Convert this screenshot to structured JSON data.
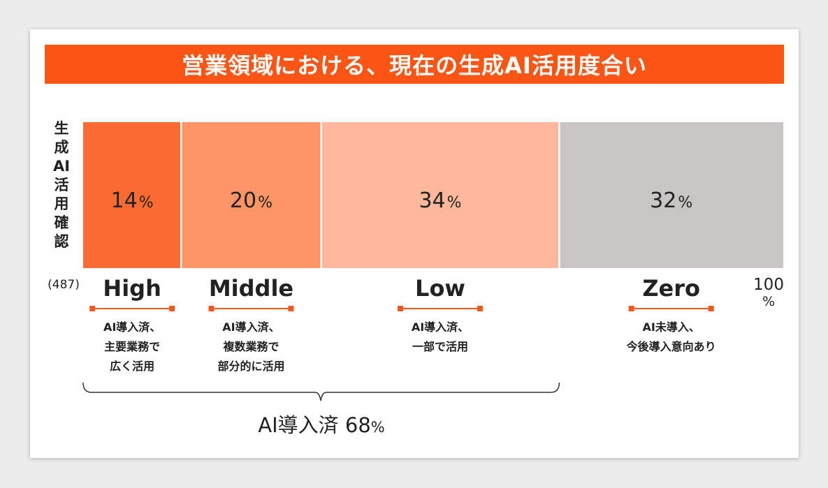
{
  "title": "営業領域における、現在の生成AI活用度合い",
  "y_axis_label": "生成AI活用確認",
  "sample_size": "(487)",
  "axis_end": {
    "value": "100",
    "unit": "%"
  },
  "colors": {
    "title_bar": "#fb5515",
    "accent_line": "#f05a1e"
  },
  "chart_data": {
    "type": "bar",
    "orientation": "horizontal-stacked",
    "title": "営業領域における、現在の生成AI活用度合い",
    "ylabel": "生成AI活用確認",
    "n": 487,
    "xlim": [
      0,
      100
    ],
    "unit": "%",
    "categories": [
      "High",
      "Middle",
      "Low",
      "Zero"
    ],
    "values": [
      14,
      20,
      34,
      32
    ],
    "value_labels": [
      "14",
      "20",
      "34",
      "32"
    ],
    "colors": [
      "#fa6b32",
      "#fd9466",
      "#fdb89c",
      "#c8c5c4"
    ],
    "descriptions": [
      "AI導入済、\n主要業務で\n広く活用",
      "AI導入済、\n複数業務で\n部分的に活用",
      "AI導入済、\n一部で活用",
      "AI未導入、\n今後導入意向あり"
    ],
    "annotation": {
      "label": "AI導入済",
      "value": "68",
      "unit": "%",
      "spans": [
        "High",
        "Middle",
        "Low"
      ]
    }
  }
}
